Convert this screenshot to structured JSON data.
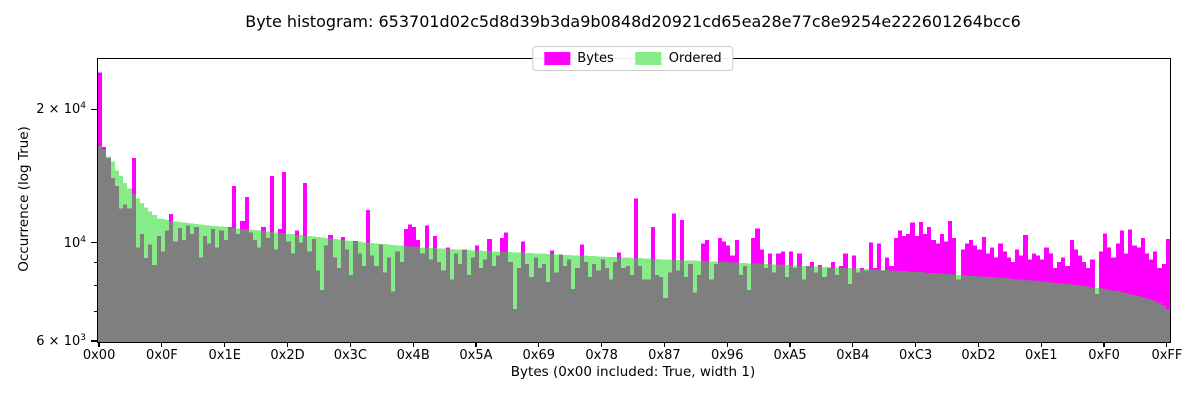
{
  "chart_data": {
    "type": "bar",
    "title": "Byte histogram: 653701d02c5d8d39b3da9b0848d20921cd65ea28e77c8e9254e222601264bcc6",
    "xlabel": "Bytes (0x00 included: True, width 1)",
    "ylabel": "Occurrence (log True)",
    "yscale": "log",
    "ylim": [
      6000,
      26000
    ],
    "x_range": [
      0,
      255
    ],
    "legend_position": "upper center",
    "grid": false,
    "series": [
      {
        "name": "Bytes",
        "color": "#ff00ff",
        "values": [
          24300,
          16500,
          15600,
          14050,
          13500,
          12000,
          12250,
          12000,
          15600,
          9800,
          10500,
          9270,
          9960,
          8960,
          10400,
          9600,
          10700,
          11650,
          10100,
          10850,
          10200,
          11000,
          10500,
          10900,
          9300,
          10400,
          10000,
          10800,
          9800,
          10700,
          10200,
          10900,
          13500,
          10500,
          11250,
          12750,
          10600,
          10200,
          9800,
          10900,
          10300,
          14200,
          9700,
          10800,
          14500,
          10100,
          9500,
          10700,
          10050,
          13700,
          9600,
          10250,
          8700,
          7870,
          9900,
          10450,
          9300,
          8800,
          10350,
          9700,
          8500,
          10150,
          9500,
          8900,
          11900,
          9400,
          8900,
          9950,
          8600,
          9300,
          7800,
          9600,
          9100,
          10800,
          11050,
          10900,
          10200,
          9500,
          11000,
          9200,
          10400,
          9100,
          8700,
          9800,
          8300,
          9500,
          9000,
          9700,
          8500,
          9300,
          9900,
          8800,
          9200,
          10250,
          8900,
          9400,
          10300,
          10600,
          9100,
          7120,
          8800,
          10100,
          9000,
          8400,
          9300,
          8800,
          9000,
          8200,
          9650,
          8600,
          9450,
          8900,
          9200,
          7900,
          8800,
          9960,
          9100,
          8400,
          9000,
          8700,
          9200,
          8800,
          8300,
          9100,
          9550,
          8800,
          8900,
          8500,
          12650,
          8900,
          8300,
          8300,
          10900,
          8500,
          8400,
          7550,
          8600,
          11700,
          8700,
          11300,
          8400,
          9000,
          7750,
          8500,
          10000,
          10200,
          8300,
          9000,
          10300,
          10100,
          9900,
          9400,
          10200,
          8500,
          8900,
          7850,
          10300,
          10830,
          9700,
          8800,
          9500,
          8600,
          9500,
          9600,
          8400,
          9600,
          8800,
          9500,
          8300,
          8900,
          9100,
          8600,
          8950,
          8400,
          8800,
          9100,
          8500,
          8900,
          9490,
          8100,
          9400,
          8600,
          8800,
          8700,
          10050,
          8800,
          10000,
          8700,
          9300,
          8900,
          10300,
          10700,
          10400,
          10500,
          11150,
          10400,
          11200,
          10500,
          10900,
          10200,
          10000,
          10500,
          10100,
          11250,
          10300,
          8300,
          9700,
          10000,
          10200,
          9900,
          9700,
          10350,
          9500,
          9800,
          9300,
          10000,
          9600,
          9300,
          9100,
          9700,
          9400,
          10450,
          9200,
          9500,
          9400,
          9200,
          9800,
          9500,
          8800,
          9100,
          9300,
          8900,
          10200,
          9700,
          9400,
          9100,
          8800,
          9200,
          7700,
          9600,
          10550,
          9800,
          9300,
          10000,
          10700,
          9500,
          10750,
          9900,
          9800,
          10300,
          9500,
          9200,
          9600,
          8800,
          9000,
          10250
        ]
      },
      {
        "name": "Ordered",
        "color": "#87eb87",
        "values": [
          16600,
          16300,
          15700,
          15300,
          14600,
          14200,
          13700,
          13300,
          12950,
          12650,
          12350,
          12050,
          11800,
          11600,
          11400,
          11350,
          11300,
          11260,
          11220,
          11180,
          11150,
          11120,
          11090,
          11070,
          11040,
          11020,
          10990,
          10970,
          10950,
          10920,
          10900,
          10870,
          10850,
          10820,
          10800,
          10770,
          10750,
          10720,
          10700,
          10670,
          10650,
          10620,
          10600,
          10570,
          10550,
          10520,
          10500,
          10470,
          10450,
          10420,
          10400,
          10370,
          10350,
          10320,
          10300,
          10270,
          10250,
          10220,
          10200,
          10170,
          10150,
          10120,
          10100,
          10070,
          10050,
          10030,
          10010,
          9990,
          9970,
          9950,
          9930,
          9910,
          9900,
          9880,
          9860,
          9840,
          9820,
          9810,
          9790,
          9780,
          9770,
          9760,
          9750,
          9730,
          9720,
          9710,
          9700,
          9690,
          9670,
          9660,
          9650,
          9640,
          9630,
          9620,
          9610,
          9600,
          9590,
          9580,
          9570,
          9560,
          9550,
          9540,
          9530,
          9520,
          9510,
          9500,
          9490,
          9480,
          9470,
          9460,
          9440,
          9430,
          9420,
          9410,
          9400,
          9400,
          9390,
          9380,
          9370,
          9360,
          9350,
          9340,
          9330,
          9320,
          9310,
          9300,
          9300,
          9290,
          9280,
          9270,
          9260,
          9250,
          9240,
          9230,
          9220,
          9210,
          9210,
          9200,
          9190,
          9180,
          9170,
          9160,
          9150,
          9140,
          9130,
          9120,
          9120,
          9110,
          9100,
          9090,
          9080,
          9070,
          9060,
          9050,
          9040,
          9030,
          9030,
          9020,
          9010,
          9000,
          8990,
          8980,
          8970,
          8960,
          8950,
          8940,
          8930,
          8920,
          8910,
          8900,
          8890,
          8880,
          8870,
          8860,
          8850,
          8840,
          8830,
          8820,
          8810,
          8800,
          8790,
          8780,
          8770,
          8760,
          8750,
          8740,
          8730,
          8720,
          8710,
          8700,
          8690,
          8680,
          8670,
          8650,
          8640,
          8630,
          8620,
          8610,
          8590,
          8580,
          8570,
          8560,
          8540,
          8530,
          8520,
          8500,
          8490,
          8480,
          8460,
          8450,
          8440,
          8430,
          8410,
          8400,
          8390,
          8370,
          8360,
          8340,
          8330,
          8310,
          8300,
          8280,
          8260,
          8250,
          8230,
          8210,
          8190,
          8170,
          8150,
          8140,
          8120,
          8100,
          8080,
          8060,
          8040,
          8020,
          8000,
          7970,
          7950,
          7920,
          7900,
          7870,
          7840,
          7810,
          7770,
          7740,
          7700,
          7660,
          7620,
          7580,
          7530,
          7480,
          7420,
          7350,
          7250,
          7120
        ]
      }
    ]
  },
  "axes": {
    "x_ticks": [
      {
        "byte": 0,
        "label": "0x00"
      },
      {
        "byte": 15,
        "label": "0x0F"
      },
      {
        "byte": 30,
        "label": "0x1E"
      },
      {
        "byte": 45,
        "label": "0x2D"
      },
      {
        "byte": 60,
        "label": "0x3C"
      },
      {
        "byte": 75,
        "label": "0x4B"
      },
      {
        "byte": 90,
        "label": "0x5A"
      },
      {
        "byte": 105,
        "label": "0x69"
      },
      {
        "byte": 120,
        "label": "0x78"
      },
      {
        "byte": 135,
        "label": "0x87"
      },
      {
        "byte": 150,
        "label": "0x96"
      },
      {
        "byte": 165,
        "label": "0xA5"
      },
      {
        "byte": 180,
        "label": "0xB4"
      },
      {
        "byte": 195,
        "label": "0xC3"
      },
      {
        "byte": 210,
        "label": "0xD2"
      },
      {
        "byte": 225,
        "label": "0xE1"
      },
      {
        "byte": 240,
        "label": "0xF0"
      },
      {
        "byte": 255,
        "label": "0xFF"
      }
    ],
    "y_major_ticks": [
      {
        "value": 20000,
        "base": "2 × 10",
        "exp": "4"
      },
      {
        "value": 10000,
        "base": "10",
        "exp": "4"
      },
      {
        "value": 6000,
        "base": "6 × 10",
        "exp": "3"
      }
    ],
    "y_minor_ticks": [
      7000,
      8000,
      9000
    ]
  },
  "legend": {
    "bytes_label": "Bytes",
    "ordered_label": "Ordered"
  },
  "colors": {
    "bytes": "#ff00ff",
    "ordered": "#87eb87",
    "overlap": "#7f7f7f",
    "spine": "#000000",
    "legend_border": "#cccccc",
    "text": "#000000"
  }
}
